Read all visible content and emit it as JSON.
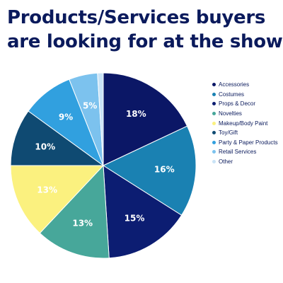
{
  "title_lines": [
    "Products/Services buyers",
    "are looking for at the show"
  ],
  "chart_data": {
    "type": "pie",
    "title": "Products/Services buyers are looking for at the show",
    "legend_position": "right",
    "series": [
      {
        "name": "Accessories",
        "value": 18,
        "label": "18%",
        "color": "#0b1766"
      },
      {
        "name": "Costumes",
        "value": 16,
        "label": "16%",
        "color": "#1a81b2"
      },
      {
        "name": "Props & Decor",
        "value": 15,
        "label": "15%",
        "color": "#0c1d72"
      },
      {
        "name": "Novelties",
        "value": 13,
        "label": "13%",
        "color": "#47a79a"
      },
      {
        "name": "Makeup/Body Paint",
        "value": 13,
        "label": "13%",
        "color": "#fbf17f"
      },
      {
        "name": "Toy/Gift",
        "value": 10,
        "label": "10%",
        "color": "#0f4a72"
      },
      {
        "name": "Party & Paper Products",
        "value": 9,
        "label": "9%",
        "color": "#31a0df"
      },
      {
        "name": "Retail Services",
        "value": 5,
        "label": "5%",
        "color": "#7cc2ee"
      },
      {
        "name": "Other",
        "value": 1,
        "label": "",
        "color": "#c9e3f6"
      }
    ]
  }
}
